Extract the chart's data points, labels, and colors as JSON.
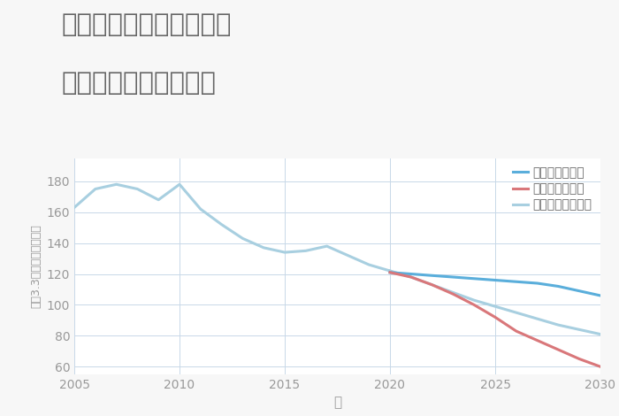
{
  "title_line1": "大阪府大阪市北区中津の",
  "title_line2": "中古戸建ての価格推移",
  "xlabel": "年",
  "ylabel": "平（3.3㎡）単価（万円）",
  "xlim": [
    2005,
    2030
  ],
  "ylim": [
    55,
    195
  ],
  "yticks": [
    60,
    80,
    100,
    120,
    140,
    160,
    180
  ],
  "xticks": [
    2005,
    2010,
    2015,
    2020,
    2025,
    2030
  ],
  "background_color": "#f7f7f7",
  "plot_bg_color": "#ffffff",
  "grid_color": "#c8d8e8",
  "scenarios": {
    "good": {
      "label": "グッドシナリオ",
      "color": "#5aaedb",
      "linewidth": 2.2,
      "x": [
        2020,
        2021,
        2022,
        2023,
        2024,
        2025,
        2026,
        2027,
        2028,
        2029,
        2030
      ],
      "y": [
        121,
        120,
        119,
        118,
        117,
        116,
        115,
        114,
        112,
        109,
        106
      ]
    },
    "bad": {
      "label": "バッドシナリオ",
      "color": "#d9777a",
      "linewidth": 2.2,
      "x": [
        2020,
        2021,
        2022,
        2023,
        2024,
        2025,
        2026,
        2027,
        2028,
        2029,
        2030
      ],
      "y": [
        121,
        118,
        113,
        107,
        100,
        92,
        83,
        77,
        71,
        65,
        60
      ]
    },
    "normal_hist": {
      "label": "ノーマルシナリオ",
      "color": "#a8cfe0",
      "linewidth": 2.2,
      "x": [
        2005,
        2006,
        2007,
        2008,
        2009,
        2010,
        2011,
        2012,
        2013,
        2014,
        2015,
        2016,
        2017,
        2018,
        2019,
        2020
      ],
      "y": [
        163,
        175,
        178,
        175,
        168,
        178,
        162,
        152,
        143,
        137,
        134,
        135,
        138,
        132,
        126,
        122
      ]
    },
    "normal_fut": {
      "color": "#a8cfe0",
      "linewidth": 2.2,
      "x": [
        2020,
        2021,
        2022,
        2023,
        2024,
        2025,
        2026,
        2027,
        2028,
        2029,
        2030
      ],
      "y": [
        122,
        118,
        113,
        108,
        103,
        99,
        95,
        91,
        87,
        84,
        81
      ]
    }
  },
  "legend_fontsize": 10,
  "title_fontsize": 21,
  "title_color": "#666666",
  "axis_label_color": "#999999",
  "tick_color": "#999999",
  "tick_fontsize": 10
}
